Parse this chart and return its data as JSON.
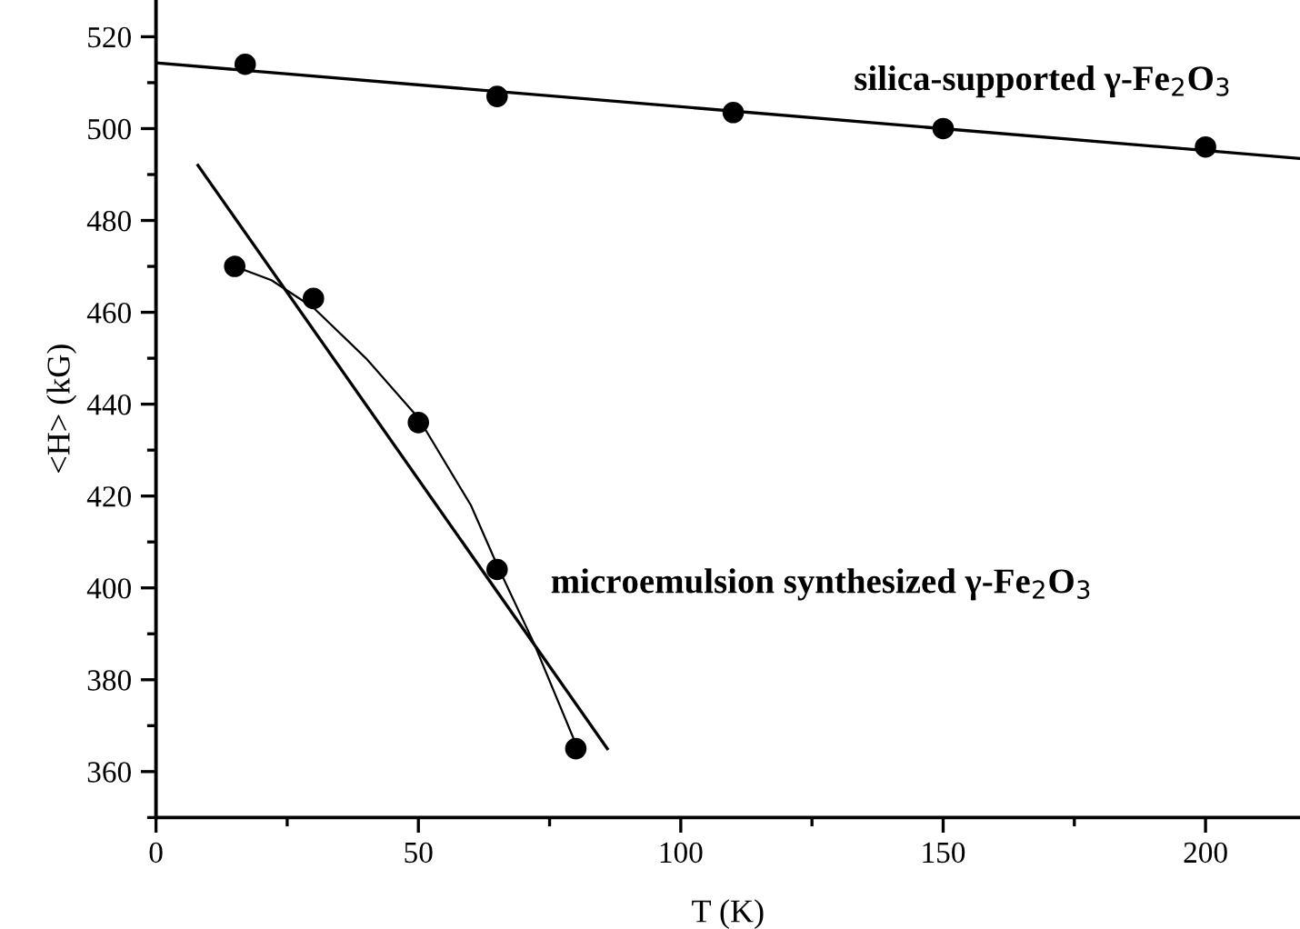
{
  "chart_data": {
    "type": "scatter",
    "xlabel": "T (K)",
    "ylabel": "<H> (kG)",
    "xlim": [
      0,
      218
    ],
    "ylim": [
      350,
      528
    ],
    "xticks": [
      0,
      {
        "value": 25,
        "label": null
      },
      50,
      {
        "value": 75,
        "label": null
      },
      100,
      {
        "value": 125,
        "label": null
      },
      150,
      {
        "value": 175,
        "label": null
      },
      200
    ],
    "yticks": [
      {
        "value": 350,
        "label": null
      },
      360,
      {
        "value": 370,
        "label": null
      },
      380,
      {
        "value": 390,
        "label": null
      },
      400,
      {
        "value": 410,
        "label": null
      },
      420,
      {
        "value": 430,
        "label": null
      },
      440,
      {
        "value": 450,
        "label": null
      },
      460,
      {
        "value": 470,
        "label": null
      },
      480,
      {
        "value": 490,
        "label": null
      },
      500,
      {
        "value": 510,
        "label": null
      },
      520
    ],
    "grid": false,
    "legend": false,
    "marker": "circle",
    "series": [
      {
        "color": "#000000",
        "x": [
          17,
          65,
          110,
          150,
          200
        ],
        "values": [
          514,
          507,
          503.5,
          500,
          496
        ]
      },
      {
        "type": "line",
        "color": "#000000",
        "marker": "none",
        "x": [
          0,
          218
        ],
        "values": [
          514.3,
          493.5
        ]
      },
      {
        "color": "#000000",
        "x": [
          15,
          30,
          50,
          65,
          80
        ],
        "values": [
          470,
          463,
          436,
          404,
          365
        ]
      },
      {
        "type": "line",
        "color": "#000000",
        "marker": "none",
        "x": [
          8,
          86
        ],
        "values": [
          492,
          365
        ]
      },
      {
        "type": "line",
        "color": "#000000",
        "marker": "none",
        "x": [
          15,
          22,
          30,
          40,
          50,
          60,
          65,
          72,
          80
        ],
        "values": [
          470,
          467,
          461,
          450,
          437,
          418,
          405,
          388,
          366
        ]
      }
    ],
    "annotations": [
      "silica-supported γ-Fe$_{2}$O$_{3}$",
      "microemulsion synthesized γ-Fe$_{2}$O$_{3}$"
    ]
  }
}
